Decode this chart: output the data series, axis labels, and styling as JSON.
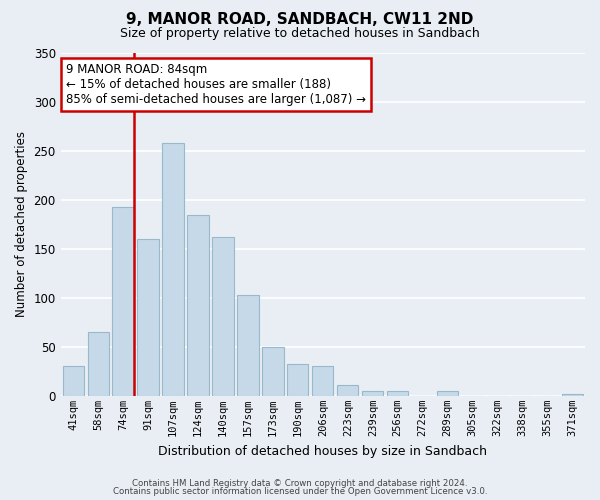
{
  "title": "9, MANOR ROAD, SANDBACH, CW11 2ND",
  "subtitle": "Size of property relative to detached houses in Sandbach",
  "xlabel": "Distribution of detached houses by size in Sandbach",
  "ylabel": "Number of detached properties",
  "bar_labels": [
    "41sqm",
    "58sqm",
    "74sqm",
    "91sqm",
    "107sqm",
    "124sqm",
    "140sqm",
    "157sqm",
    "173sqm",
    "190sqm",
    "206sqm",
    "223sqm",
    "239sqm",
    "256sqm",
    "272sqm",
    "289sqm",
    "305sqm",
    "322sqm",
    "338sqm",
    "355sqm",
    "371sqm"
  ],
  "bar_values": [
    30,
    65,
    193,
    160,
    258,
    184,
    162,
    103,
    50,
    32,
    30,
    11,
    5,
    5,
    0,
    5,
    0,
    0,
    0,
    0,
    2
  ],
  "bar_color": "#c6d9e8",
  "bar_edge_color": "#9ab8cc",
  "highlight_line_color": "#cc0000",
  "ylim": [
    0,
    350
  ],
  "yticks": [
    0,
    50,
    100,
    150,
    200,
    250,
    300,
    350
  ],
  "annotation_line1": "9 MANOR ROAD: 84sqm",
  "annotation_line2": "← 15% of detached houses are smaller (188)",
  "annotation_line3": "85% of semi-detached houses are larger (1,087) →",
  "annotation_box_color": "#ffffff",
  "annotation_box_edge_color": "#cc0000",
  "footer_line1": "Contains HM Land Registry data © Crown copyright and database right 2024.",
  "footer_line2": "Contains public sector information licensed under the Open Government Licence v3.0.",
  "background_color": "#e8eef4",
  "grid_color": "#ffffff",
  "title_fontsize": 11,
  "subtitle_fontsize": 9
}
